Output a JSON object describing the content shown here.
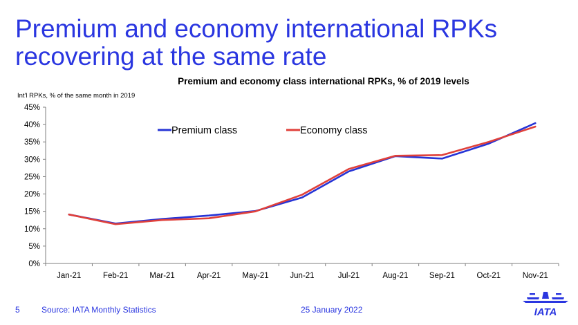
{
  "slide": {
    "title_line1": "Premium and economy international RPKs",
    "title_line2": "recovering at the same rate",
    "page_number": "5",
    "source": "Source: IATA Monthly Statistics",
    "date": "25 January 2022",
    "logo_text": "IATA"
  },
  "colors": {
    "title": "#2a36e0",
    "premium": "#2634d6",
    "economy": "#e0403a"
  },
  "chart_data": {
    "type": "line",
    "title": "Premium and economy class international RPKs, % of 2019 levels",
    "ylabel": "Int'l RPKs, % of the same month in 2019",
    "xlabel": "",
    "categories": [
      "Jan-21",
      "Feb-21",
      "Mar-21",
      "Apr-21",
      "May-21",
      "Jun-21",
      "Jul-21",
      "Aug-21",
      "Sep-21",
      "Oct-21",
      "Nov-21"
    ],
    "ylim": [
      0,
      45
    ],
    "yticks": [
      "0%",
      "5%",
      "10%",
      "15%",
      "20%",
      "25%",
      "30%",
      "35%",
      "40%",
      "45%"
    ],
    "legend": "top-center",
    "series": [
      {
        "name": "Premium class",
        "values": [
          14.1,
          11.5,
          12.8,
          13.8,
          15.1,
          19.0,
          26.5,
          30.9,
          30.2,
          34.5,
          40.4
        ]
      },
      {
        "name": "Economy class",
        "values": [
          14.1,
          11.3,
          12.5,
          13.0,
          15.0,
          19.8,
          27.2,
          31.0,
          31.2,
          35.0,
          39.4
        ]
      }
    ]
  }
}
